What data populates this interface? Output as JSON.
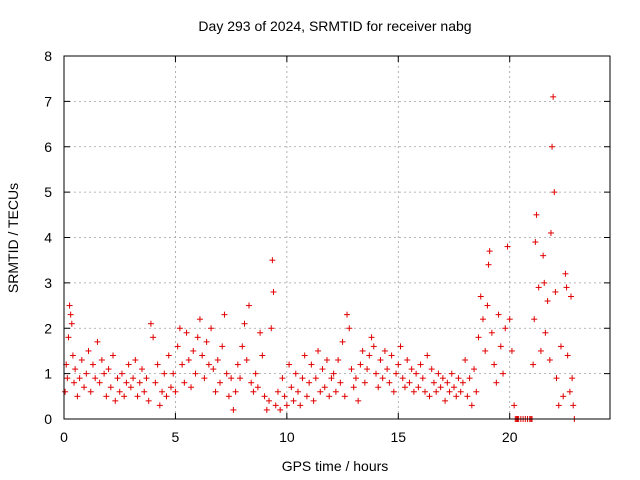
{
  "chart_data": {
    "type": "scatter",
    "title": "Day 293 of 2024, SRMTID for receiver nabg",
    "xlabel": "GPS time / hours",
    "ylabel": "SRMTID / TECUs",
    "xlim": [
      0,
      24.5
    ],
    "ylim": [
      0,
      8
    ],
    "xticks": [
      0,
      5,
      10,
      15,
      20
    ],
    "yticks": [
      0,
      1,
      2,
      3,
      4,
      5,
      6,
      7,
      8
    ],
    "grid": true,
    "marker": "+",
    "color": "#e00000",
    "series": [
      {
        "name": "SRMTID",
        "points": [
          [
            0.05,
            0.6
          ],
          [
            0.1,
            1.2
          ],
          [
            0.15,
            0.9
          ],
          [
            0.2,
            1.8
          ],
          [
            0.25,
            2.5
          ],
          [
            0.3,
            2.3
          ],
          [
            0.35,
            2.1
          ],
          [
            0.4,
            1.4
          ],
          [
            0.45,
            0.8
          ],
          [
            0.5,
            1.1
          ],
          [
            0.6,
            0.5
          ],
          [
            0.7,
            0.9
          ],
          [
            0.8,
            1.3
          ],
          [
            0.9,
            0.7
          ],
          [
            1.0,
            1.0
          ],
          [
            1.1,
            1.5
          ],
          [
            1.2,
            0.6
          ],
          [
            1.3,
            1.2
          ],
          [
            1.4,
            0.9
          ],
          [
            1.5,
            1.7
          ],
          [
            1.6,
            0.8
          ],
          [
            1.7,
            1.3
          ],
          [
            1.8,
            1.0
          ],
          [
            1.9,
            0.5
          ],
          [
            2.0,
            1.1
          ],
          [
            2.1,
            0.7
          ],
          [
            2.2,
            1.4
          ],
          [
            2.3,
            0.4
          ],
          [
            2.4,
            0.9
          ],
          [
            2.5,
            0.6
          ],
          [
            2.6,
            1.0
          ],
          [
            2.7,
            0.5
          ],
          [
            2.8,
            0.8
          ],
          [
            2.9,
            1.2
          ],
          [
            3.0,
            0.7
          ],
          [
            3.1,
            0.9
          ],
          [
            3.2,
            1.3
          ],
          [
            3.3,
            0.5
          ],
          [
            3.4,
            0.8
          ],
          [
            3.5,
            1.1
          ],
          [
            3.6,
            0.6
          ],
          [
            3.7,
            0.9
          ],
          [
            3.8,
            0.4
          ],
          [
            3.9,
            2.1
          ],
          [
            4.0,
            1.8
          ],
          [
            4.1,
            0.8
          ],
          [
            4.2,
            1.2
          ],
          [
            4.3,
            0.3
          ],
          [
            4.4,
            0.6
          ],
          [
            4.5,
            1.0
          ],
          [
            4.6,
            0.5
          ],
          [
            4.7,
            1.4
          ],
          [
            4.8,
            0.7
          ],
          [
            4.9,
            1.0
          ],
          [
            5.0,
            0.6
          ],
          [
            5.1,
            1.6
          ],
          [
            5.2,
            2.0
          ],
          [
            5.3,
            1.2
          ],
          [
            5.4,
            0.8
          ],
          [
            5.5,
            1.9
          ],
          [
            5.6,
            1.3
          ],
          [
            5.7,
            0.7
          ],
          [
            5.8,
            1.5
          ],
          [
            5.9,
            1.0
          ],
          [
            6.0,
            1.8
          ],
          [
            6.1,
            2.2
          ],
          [
            6.2,
            1.4
          ],
          [
            6.3,
            0.9
          ],
          [
            6.4,
            1.7
          ],
          [
            6.5,
            1.2
          ],
          [
            6.6,
            2.0
          ],
          [
            6.7,
            1.1
          ],
          [
            6.8,
            0.6
          ],
          [
            6.9,
            1.3
          ],
          [
            7.0,
            0.8
          ],
          [
            7.1,
            1.6
          ],
          [
            7.2,
            2.3
          ],
          [
            7.3,
            1.0
          ],
          [
            7.4,
            0.5
          ],
          [
            7.5,
            0.9
          ],
          [
            7.6,
            0.2
          ],
          [
            7.7,
            0.6
          ],
          [
            7.8,
            1.2
          ],
          [
            7.9,
            0.9
          ],
          [
            8.0,
            1.6
          ],
          [
            8.1,
            2.1
          ],
          [
            8.2,
            1.3
          ],
          [
            8.3,
            2.5
          ],
          [
            8.4,
            0.8
          ],
          [
            8.5,
            0.6
          ],
          [
            8.6,
            1.0
          ],
          [
            8.7,
            0.7
          ],
          [
            8.8,
            1.9
          ],
          [
            8.9,
            1.4
          ],
          [
            9.0,
            0.5
          ],
          [
            9.1,
            0.2
          ],
          [
            9.2,
            0.4
          ],
          [
            9.3,
            2.0
          ],
          [
            9.35,
            3.5
          ],
          [
            9.4,
            2.8
          ],
          [
            9.5,
            0.3
          ],
          [
            9.6,
            0.6
          ],
          [
            9.7,
            0.2
          ],
          [
            9.8,
            0.9
          ],
          [
            9.9,
            0.5
          ],
          [
            10.0,
            0.3
          ],
          [
            10.1,
            1.2
          ],
          [
            10.2,
            0.7
          ],
          [
            10.3,
            0.4
          ],
          [
            10.4,
            1.0
          ],
          [
            10.5,
            0.6
          ],
          [
            10.6,
            0.3
          ],
          [
            10.7,
            0.9
          ],
          [
            10.8,
            1.4
          ],
          [
            10.9,
            0.5
          ],
          [
            11.0,
            0.8
          ],
          [
            11.1,
            1.2
          ],
          [
            11.2,
            0.4
          ],
          [
            11.3,
            0.9
          ],
          [
            11.4,
            1.5
          ],
          [
            11.5,
            0.6
          ],
          [
            11.6,
            1.1
          ],
          [
            11.7,
            0.7
          ],
          [
            11.8,
            1.3
          ],
          [
            11.9,
            0.5
          ],
          [
            12.0,
            0.9
          ],
          [
            12.1,
            1.0
          ],
          [
            12.2,
            0.6
          ],
          [
            12.3,
            1.3
          ],
          [
            12.4,
            0.8
          ],
          [
            12.5,
            1.7
          ],
          [
            12.6,
            0.5
          ],
          [
            12.7,
            2.3
          ],
          [
            12.8,
            2.0
          ],
          [
            12.9,
            1.1
          ],
          [
            13.0,
            0.7
          ],
          [
            13.1,
            0.9
          ],
          [
            13.2,
            0.4
          ],
          [
            13.3,
            1.2
          ],
          [
            13.4,
            1.5
          ],
          [
            13.5,
            0.8
          ],
          [
            13.6,
            1.1
          ],
          [
            13.7,
            1.4
          ],
          [
            13.8,
            1.8
          ],
          [
            13.9,
            1.6
          ],
          [
            14.0,
            1.0
          ],
          [
            14.1,
            0.7
          ],
          [
            14.2,
            1.3
          ],
          [
            14.3,
            0.9
          ],
          [
            14.4,
            1.5
          ],
          [
            14.5,
            1.1
          ],
          [
            14.6,
            0.8
          ],
          [
            14.7,
            1.4
          ],
          [
            14.8,
            0.6
          ],
          [
            14.9,
            1.0
          ],
          [
            15.0,
            1.2
          ],
          [
            15.1,
            1.6
          ],
          [
            15.2,
            0.9
          ],
          [
            15.3,
            0.7
          ],
          [
            15.4,
            1.3
          ],
          [
            15.5,
            0.8
          ],
          [
            15.6,
            1.1
          ],
          [
            15.7,
            0.6
          ],
          [
            15.8,
            1.0
          ],
          [
            15.9,
            0.7
          ],
          [
            16.0,
            1.2
          ],
          [
            16.1,
            0.9
          ],
          [
            16.2,
            0.6
          ],
          [
            16.3,
            1.4
          ],
          [
            16.4,
            0.5
          ],
          [
            16.5,
            1.1
          ],
          [
            16.6,
            0.8
          ],
          [
            16.7,
            0.6
          ],
          [
            16.8,
            1.0
          ],
          [
            16.9,
            0.7
          ],
          [
            17.0,
            0.9
          ],
          [
            17.1,
            0.4
          ],
          [
            17.2,
            0.8
          ],
          [
            17.3,
            0.6
          ],
          [
            17.4,
            1.0
          ],
          [
            17.5,
            0.7
          ],
          [
            17.6,
            0.5
          ],
          [
            17.7,
            0.9
          ],
          [
            17.8,
            0.6
          ],
          [
            17.9,
            0.8
          ],
          [
            18.0,
            1.3
          ],
          [
            18.1,
            0.5
          ],
          [
            18.2,
            0.9
          ],
          [
            18.3,
            0.3
          ],
          [
            18.4,
            1.1
          ],
          [
            18.5,
            0.6
          ],
          [
            18.6,
            1.8
          ],
          [
            18.7,
            2.7
          ],
          [
            18.8,
            2.2
          ],
          [
            18.9,
            1.5
          ],
          [
            19.0,
            2.5
          ],
          [
            19.05,
            3.4
          ],
          [
            19.1,
            3.7
          ],
          [
            19.2,
            1.9
          ],
          [
            19.3,
            1.2
          ],
          [
            19.4,
            0.8
          ],
          [
            19.5,
            2.3
          ],
          [
            19.6,
            1.6
          ],
          [
            19.7,
            1.0
          ],
          [
            19.8,
            2.0
          ],
          [
            19.9,
            3.8
          ],
          [
            20.0,
            2.2
          ],
          [
            20.1,
            1.5
          ],
          [
            20.2,
            0.3
          ],
          [
            20.25,
            0.0
          ],
          [
            20.3,
            0.0
          ],
          [
            20.35,
            0.0
          ],
          [
            20.4,
            0.0
          ],
          [
            20.5,
            0.0
          ],
          [
            20.6,
            0.0
          ],
          [
            20.7,
            0.0
          ],
          [
            20.8,
            0.0
          ],
          [
            20.9,
            0.0
          ],
          [
            20.95,
            0.0
          ],
          [
            21.0,
            0.0
          ],
          [
            21.05,
            1.2
          ],
          [
            21.1,
            2.2
          ],
          [
            21.15,
            3.9
          ],
          [
            21.2,
            4.5
          ],
          [
            21.3,
            2.9
          ],
          [
            21.4,
            1.5
          ],
          [
            21.5,
            3.6
          ],
          [
            21.55,
            3.0
          ],
          [
            21.6,
            1.9
          ],
          [
            21.7,
            2.6
          ],
          [
            21.8,
            1.3
          ],
          [
            21.85,
            4.1
          ],
          [
            21.9,
            6.0
          ],
          [
            21.95,
            7.1
          ],
          [
            22.0,
            5.0
          ],
          [
            22.05,
            2.8
          ],
          [
            22.1,
            0.9
          ],
          [
            22.2,
            0.3
          ],
          [
            22.3,
            1.6
          ],
          [
            22.4,
            0.5
          ],
          [
            22.5,
            3.2
          ],
          [
            22.55,
            2.9
          ],
          [
            22.6,
            1.4
          ],
          [
            22.7,
            0.6
          ],
          [
            22.75,
            2.7
          ],
          [
            22.8,
            0.9
          ],
          [
            22.85,
            0.3
          ],
          [
            22.9,
            0.0
          ]
        ]
      }
    ]
  }
}
